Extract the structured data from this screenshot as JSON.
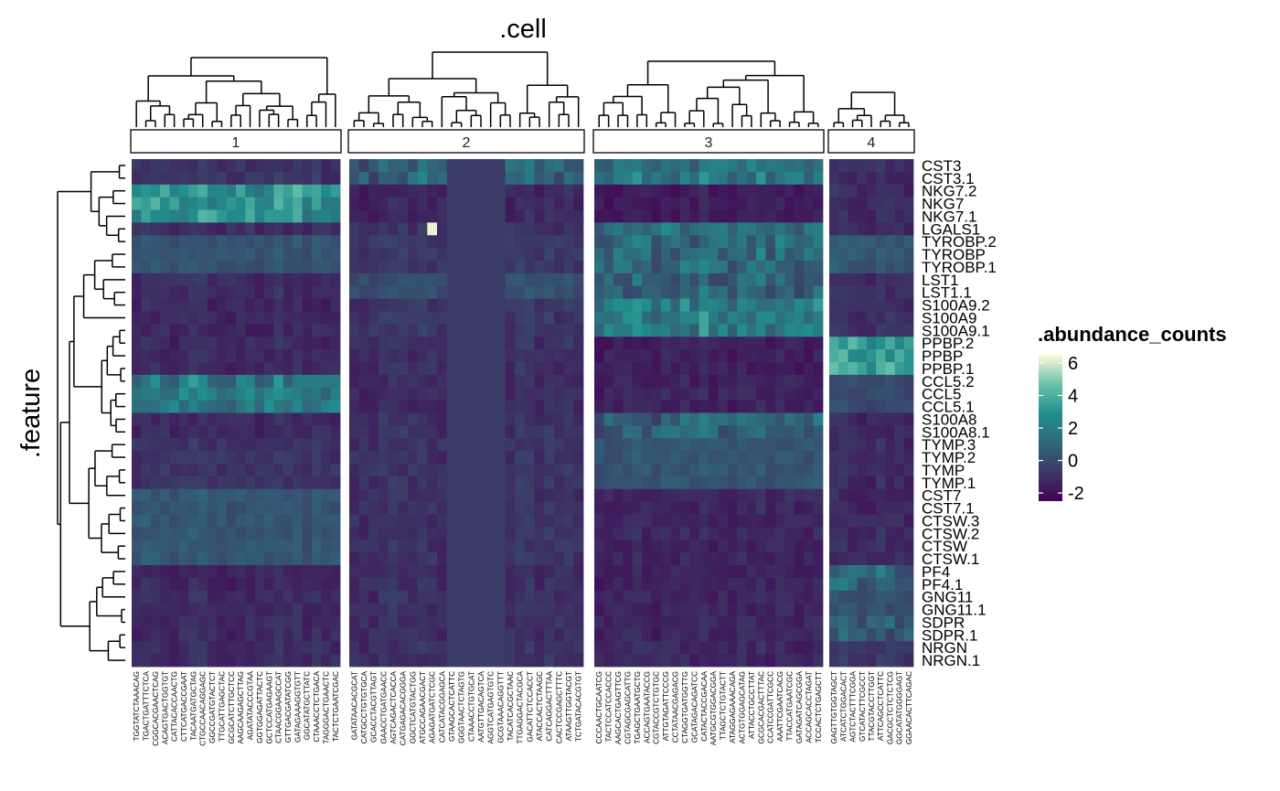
{
  "chart_data": {
    "type": "heatmap",
    "title": ".cell",
    "ylabel": ".feature",
    "legend": {
      "title": ".abundance_counts",
      "placement": "right",
      "range": [
        -2.5,
        6.5
      ],
      "ticks": [
        6,
        4,
        2,
        0,
        -2
      ],
      "tick_labels": [
        "6",
        "4",
        "2",
        "0",
        "-2"
      ],
      "colors": [
        "#440154",
        "#3b3a66",
        "#30677a",
        "#21908d",
        "#6cc3aa",
        "#fdf8d8"
      ]
    },
    "features": [
      "CST3",
      "CST3.1",
      "NKG7.2",
      "NKG7",
      "NKG7.1",
      "LGALS1",
      "TYROBP.2",
      "TYROBP",
      "TYROBP.1",
      "LST1",
      "LST1.1",
      "S100A9.2",
      "S100A9",
      "S100A9.1",
      "PPBP.2",
      "PPBP",
      "PPBP.1",
      "CCL5.2",
      "CCL5",
      "CCL5.1",
      "S100A8",
      "S100A8.1",
      "TYMP.3",
      "TYMP.2",
      "TYMP",
      "TYMP.1",
      "CST7",
      "CST7.1",
      "CTSW.3",
      "CTSW.2",
      "CTSW",
      "CTSW.1",
      "PF4",
      "PF4.1",
      "GNG11",
      "GNG11.1",
      "SDPR",
      "SDPR.1",
      "NRGN",
      "NRGN.1"
    ],
    "row_groups": [
      {
        "start": 0,
        "end": 1,
        "label": "CST3"
      },
      {
        "start": 2,
        "end": 4,
        "label": "NKG7"
      },
      {
        "start": 5,
        "end": 5,
        "label": "LGALS1"
      },
      {
        "start": 6,
        "end": 8,
        "label": "TYROBP"
      },
      {
        "start": 9,
        "end": 10,
        "label": "LST1"
      },
      {
        "start": 11,
        "end": 13,
        "label": "S100A9"
      },
      {
        "start": 14,
        "end": 16,
        "label": "PPBP"
      },
      {
        "start": 17,
        "end": 19,
        "label": "CCL5"
      },
      {
        "start": 20,
        "end": 21,
        "label": "S100A8"
      },
      {
        "start": 22,
        "end": 25,
        "label": "TYMP"
      },
      {
        "start": 26,
        "end": 27,
        "label": "CST7"
      },
      {
        "start": 28,
        "end": 31,
        "label": "CTSW"
      },
      {
        "start": 32,
        "end": 33,
        "label": "PF4"
      },
      {
        "start": 34,
        "end": 35,
        "label": "GNG11"
      },
      {
        "start": 36,
        "end": 37,
        "label": "SDPR"
      },
      {
        "start": 38,
        "end": 39,
        "label": "NRGN"
      }
    ],
    "clusters": [
      {
        "label": "1",
        "cells": [
          "TGGTATCTAAACAG",
          "TGACTGATTTCTCA",
          "CGGCACGAACTCAG",
          "ACAGTGACTGGTGT",
          "CATTACACCAACTG",
          "CTTCATGACCGAAT",
          "TACAATGATGCTAG",
          "CTGCCAACAGGAGC",
          "GGCCGATGTACTCT",
          "TTGCATTGAGCTAC",
          "GCGCATCTTGCTCC",
          "AAGCAAGAGCTTAG",
          "AGATATACCCGTAA",
          "GGTGGAGATTACTC",
          "GCTCCATGAGAAGT",
          "CTAACGGAAGCCAT",
          "GTTGACGATATCGG",
          "GATAGAAAGGTGTT",
          "GGCATATGCTTATC",
          "CTAAACCTCTGACA",
          "TAGGGACTGAACTC",
          "TACTCTGAATCGAC"
        ]
      },
      {
        "label": "2",
        "cells": [
          "GATATAACACGCAT",
          "CATGCCTGTGTGCA",
          "GCACCTACGTTAGT",
          "GAACCTGATGAACC",
          "AGTCAGACTCACCA",
          "CATGAGACACGGGA",
          "GGCTCATGTACTGG",
          "ATGCCAGAACGACT",
          "AGAGATGATCTCGC",
          "CATCATACGGAGCA",
          "GTAAGCACTCATTC",
          "GGGTAACTCTAGTG",
          "CTAAACCTGTGCAT",
          "AATGTTGACAGTCA",
          "AGGTCATGAGTGTC",
          "GCGTAAACAGGTTT",
          "TACATCACGCTAAC",
          "TTGAGGACTACGCA",
          "GACATTCTCCACCT",
          "ATACCACTCTAAGC",
          "CATCAGGACTTTAA",
          "CACTCCGAGCTTTC",
          "ATAAGTTGGTACGT",
          "TCTGATACACGTGT"
        ]
      },
      {
        "label": "3",
        "cells": [
          "CCCAACTGCAATCG",
          "TACTCCATCCACCC",
          "AAGCACTGAGTTCG",
          "CGTAGCGAGCATTG",
          "TGAGCTGAATGCTG",
          "ACCAGTGAATACCG",
          "CGTACCGTCTGTGC",
          "ATTGTAGATTCCCG",
          "CCTATAACGAGACG",
          "CTAGGTGATGGTTG",
          "GCATAGACAGATCC",
          "CATACTACCGACAA",
          "AATGCGTGGACGGA",
          "TTAGCTCTGTACTT",
          "ATAGGAGAAACAGA",
          "ACTGTGGAGCATAG",
          "ATTACCTGCCTTAT",
          "GCGCACGACTTTAC",
          "CCATCCGATTCGCC",
          "AAATTCGAATCACG",
          "TTACCATGAATCGC",
          "GATAGATCAGCGGA",
          "ACCAGCACCTAGAT",
          "TCCACTCTGAGCTT"
        ]
      },
      {
        "label": "4",
        "cells": [
          "GAGTTGTGGTAGCT",
          "ATCATCTGGACACT",
          "AGTCTACTTTCGGA",
          "GTCATACTTCGCCT",
          "TTACGTACCTTGGT",
          "ATTCAGCCTCATTC",
          "GACGCTCTCTCTCG",
          "GGCATATGGGGAGT",
          "GGAACACTTCAGAC"
        ]
      }
    ]
  }
}
